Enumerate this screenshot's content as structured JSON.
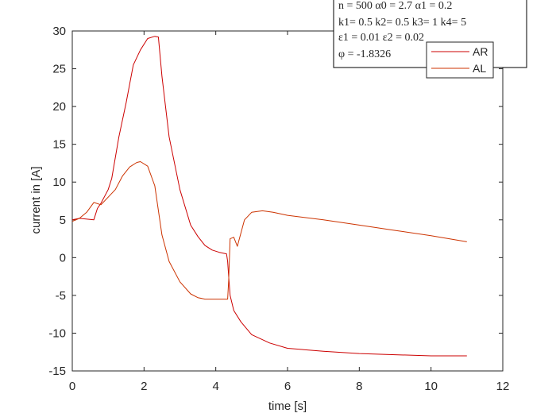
{
  "chart_data": {
    "type": "line",
    "title": "",
    "xlabel": "time [s]",
    "ylabel": "current in  [A]",
    "xlim": [
      0,
      12
    ],
    "ylim": [
      -15,
      30
    ],
    "xticks": [
      0,
      2,
      4,
      6,
      8,
      10,
      12
    ],
    "yticks": [
      -15,
      -10,
      -5,
      0,
      5,
      10,
      15,
      20,
      25,
      30
    ],
    "grid": false,
    "legend_position": "top-right",
    "annotation_lines": [
      "n = 500 α0 =  2.7 α1 =  0.2",
      "k1= 0.5 k2= 0.5 k3= 1 k4= 5",
      "ε1 =  0.01 ε2 =  0.02",
      "φ =  -1.8326"
    ],
    "series": [
      {
        "name": "AR",
        "color": "#cc0000",
        "x": [
          0,
          0.2,
          0.6,
          0.7,
          0.8,
          1.0,
          1.1,
          1.3,
          1.5,
          1.7,
          1.9,
          2.1,
          2.3,
          2.4,
          2.5,
          2.7,
          3.0,
          3.3,
          3.5,
          3.7,
          3.9,
          4.1,
          4.3,
          4.33,
          4.36,
          4.4,
          4.5,
          4.7,
          5.0,
          5.5,
          6.0,
          7.0,
          8.0,
          9.0,
          10.0,
          11.0
        ],
        "y": [
          5,
          5.2,
          5,
          6.5,
          7.2,
          9,
          10.5,
          16,
          20.5,
          25.5,
          27.5,
          29,
          29.3,
          29.2,
          24,
          16,
          9,
          4.3,
          2.8,
          1.6,
          1.0,
          0.7,
          0.5,
          -0.5,
          -2.5,
          -5,
          -7,
          -8.5,
          -10.2,
          -11.3,
          -12,
          -12.4,
          -12.7,
          -12.85,
          -13,
          -13
        ]
      },
      {
        "name": "AL",
        "color": "#cc3300",
        "x": [
          0,
          0.2,
          0.4,
          0.6,
          0.8,
          1.0,
          1.2,
          1.4,
          1.6,
          1.8,
          1.9,
          2.1,
          2.3,
          2.5,
          2.7,
          3.0,
          3.3,
          3.5,
          3.7,
          4.0,
          4.33,
          4.36,
          4.4,
          4.5,
          4.6,
          4.8,
          5.0,
          5.3,
          5.6,
          6.0,
          7.0,
          8.0,
          9.0,
          10.0,
          11.0
        ],
        "y": [
          4.8,
          5.2,
          6,
          7.3,
          7,
          8,
          9,
          10.8,
          12,
          12.6,
          12.7,
          12.1,
          9.5,
          3,
          -0.5,
          -3.2,
          -4.8,
          -5.3,
          -5.5,
          -5.5,
          -5.5,
          -3,
          2.5,
          2.7,
          1.5,
          5,
          6,
          6.2,
          6,
          5.6,
          5,
          4.3,
          3.6,
          2.9,
          2.1
        ]
      }
    ]
  }
}
